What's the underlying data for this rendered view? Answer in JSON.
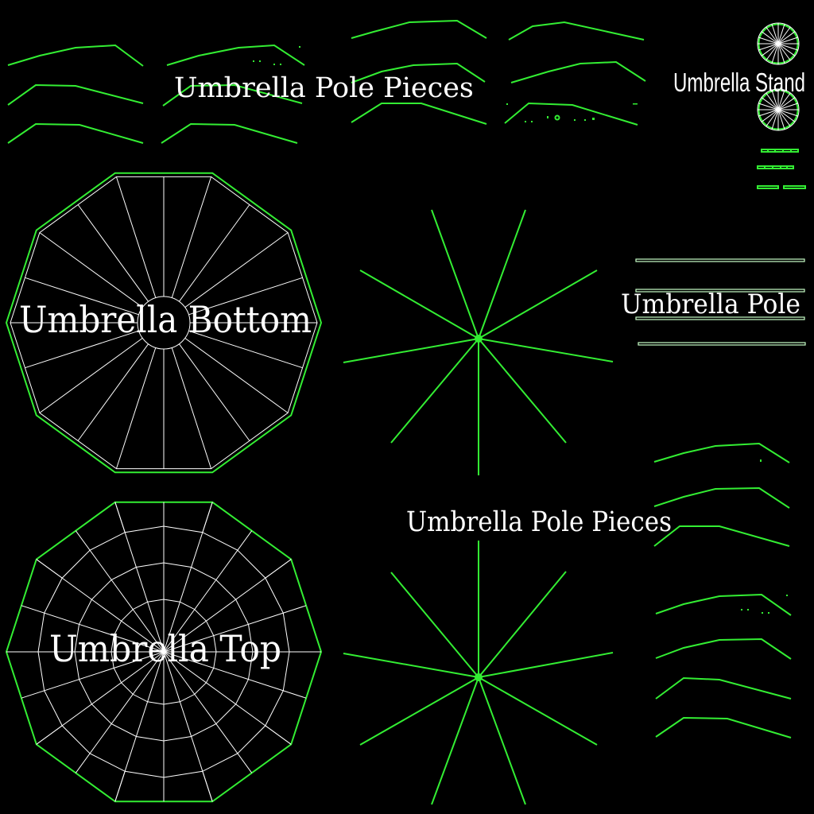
{
  "labels": {
    "pole_pieces_top": "Umbrella Pole Pieces",
    "stand": "Umbrella Stand",
    "bottom": "Umbrella Bottom",
    "pole": "Umbrella Pole",
    "pole_pieces_mid": "Umbrella Pole Pieces",
    "top": "Umbrella Top"
  },
  "colors": {
    "background": "#000000",
    "wire_green": "#33ee33",
    "wire_white": "#ffffff",
    "label_text": "#ffffff"
  },
  "parts": {
    "bottom_segments": 10,
    "top_segments": 10,
    "rib_fan_spokes": 10,
    "stand_spokes": 20
  }
}
